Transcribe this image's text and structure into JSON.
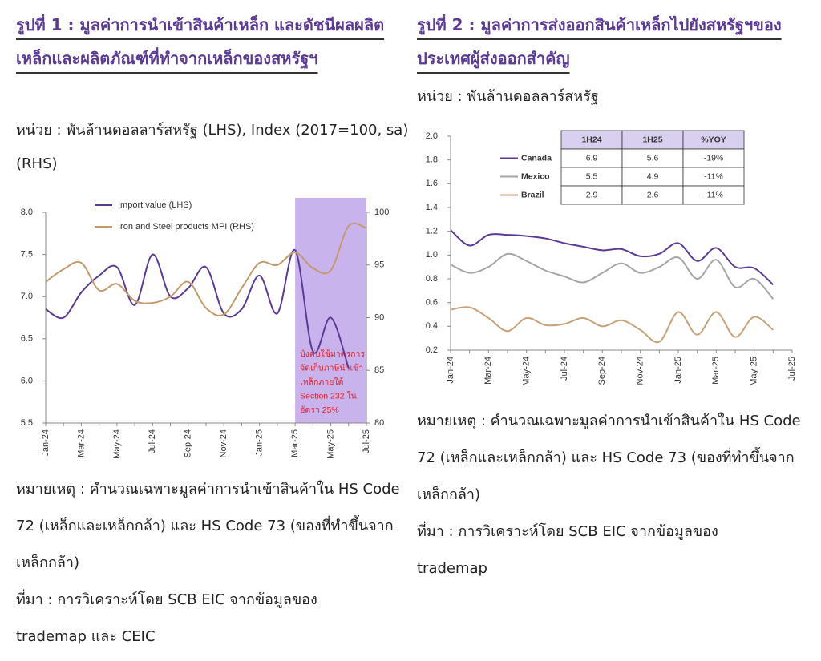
{
  "chart_data": [
    {
      "type": "line",
      "title": "รูปที่ 1 : มูลค่าการนำเข้าสินค้าเหล็ก และดัชนีผลผลิตเหล็กและผลิตภัณฑ์ที่ทำจากเหล็กของสหรัฐฯ",
      "subtitle": "หน่วย : พันล้านดอลลาร์สหรัฐ (LHS), Index (2017=100, sa) (RHS)",
      "note": "หมายเหตุ : คำนวณเฉพาะมูลค่าการนำเข้าสินค้าใน HS Code 72 (เหล็กและเหล็กกล้า) และ HS Code 73 (ของที่ทำขึ้นจากเหล็กกล้า)",
      "source": "ที่มา : การวิเคราะห์โดย SCB EIC จากข้อมูลของ trademap และ CEIC",
      "categories": [
        "Jan-24",
        null,
        "Mar-24",
        null,
        "May-24",
        null,
        "Jul-24",
        null,
        "Sep-24",
        null,
        "Nov-24",
        null,
        "Jan-25",
        null,
        "Mar-25",
        null,
        "May-25",
        null,
        "Jul-25"
      ],
      "series": [
        {
          "name": "Import value (LHS)",
          "color": "#5b3a96",
          "values": [
            6.85,
            6.75,
            7.05,
            7.25,
            7.35,
            6.9,
            7.5,
            7.0,
            7.1,
            7.35,
            6.8,
            6.85,
            7.25,
            6.8,
            7.55,
            6.35,
            6.75,
            6.15,
            null
          ]
        },
        {
          "name": "Iron and Steel products MPI (RHS)",
          "color": "#c49a6c",
          "axis": "y2",
          "values": [
            93.4,
            94.6,
            95.2,
            92.6,
            93.2,
            91.6,
            91.4,
            92.0,
            93.4,
            90.9,
            90.3,
            92.8,
            95.2,
            95.0,
            96.2,
            94.7,
            94.5,
            98.7,
            98.5
          ]
        }
      ],
      "ylim": [
        5.5,
        8
      ],
      "yticks": [
        5.5,
        {
          "value": 6,
          "label": "6.0"
        },
        6.5,
        {
          "value": 7,
          "label": "7.0"
        },
        7.5,
        {
          "value": 8,
          "label": "8.0"
        }
      ],
      "y2lim": [
        80,
        100
      ],
      "y2ticks": [
        80,
        85,
        90,
        95,
        100
      ],
      "shade": {
        "from": "Mar-25",
        "to": "Jul-25",
        "color": "#c9b3ec"
      },
      "annotation": [
        "บังคับใช้มาตรการ",
        "จัดเก็บภาษีนำเข้า",
        "เหล็กภายใต้",
        "Section 232 ใน",
        "อัตรา 25%"
      ],
      "annotation_color": "#e8202a",
      "legend": "top-left"
    },
    {
      "type": "line",
      "title": "รูปที่ 2 : มูลค่าการส่งออกสินค้าเหล็กไปยังสหรัฐฯของประเทศผู้ส่งออกสำคัญ",
      "subtitle": "หน่วย : พันล้านดอลลาร์สหรัฐ",
      "note": "หมายเหตุ : คำนวณเฉพาะมูลค่าการนำเข้าสินค้าใน HS Code 72 (เหล็กและเหล็กกล้า) และ HS Code 73 (ของที่ทำขึ้นจากเหล็กกล้า)",
      "source": "ที่มา : การวิเคราะห์โดย SCB EIC จากข้อมูลของ trademap",
      "categories": [
        "Jan-24",
        null,
        "Mar-24",
        null,
        "May-24",
        null,
        "Jul-24",
        null,
        "Sep-24",
        null,
        "Nov-24",
        null,
        "Jan-25",
        null,
        "Mar-25",
        null,
        "May-25",
        null,
        "Jul-25"
      ],
      "series": [
        {
          "name": "Canada",
          "color": "#5b3a96",
          "values": [
            1.21,
            1.08,
            1.17,
            1.17,
            1.16,
            1.14,
            1.1,
            1.07,
            1.04,
            1.05,
            0.99,
            1.01,
            1.1,
            0.95,
            1.06,
            0.9,
            0.89,
            0.75,
            null
          ]
        },
        {
          "name": "Mexico",
          "color": "#a6a6a6",
          "values": [
            0.92,
            0.85,
            0.9,
            1.01,
            0.95,
            0.87,
            0.82,
            0.77,
            0.85,
            0.93,
            0.85,
            0.9,
            0.98,
            0.8,
            0.96,
            0.73,
            0.8,
            0.63,
            null
          ]
        },
        {
          "name": "Brazil",
          "color": "#c9a27a",
          "values": [
            0.54,
            0.56,
            0.47,
            0.36,
            0.47,
            0.41,
            0.42,
            0.47,
            0.4,
            0.45,
            0.37,
            0.27,
            0.52,
            0.33,
            0.52,
            0.31,
            0.48,
            0.37,
            null
          ]
        }
      ],
      "ylim": [
        0.2,
        2
      ],
      "yticks": [
        0.2,
        0.4,
        0.6,
        0.8,
        {
          "value": 1,
          "label": "1.0"
        },
        1.2,
        1.4,
        1.6,
        1.8,
        {
          "value": 2,
          "label": "2.0"
        }
      ],
      "legend_table": {
        "columns": [
          "1H24",
          "1H25",
          "%YOY"
        ],
        "rows": [
          [
            "6.9",
            "5.6",
            "-19%"
          ],
          [
            "5.5",
            "4.9",
            "-11%"
          ],
          [
            "2.9",
            "2.6",
            "-11%"
          ]
        ],
        "header_color": "#d9d0ef"
      },
      "legend": "top-right"
    }
  ]
}
